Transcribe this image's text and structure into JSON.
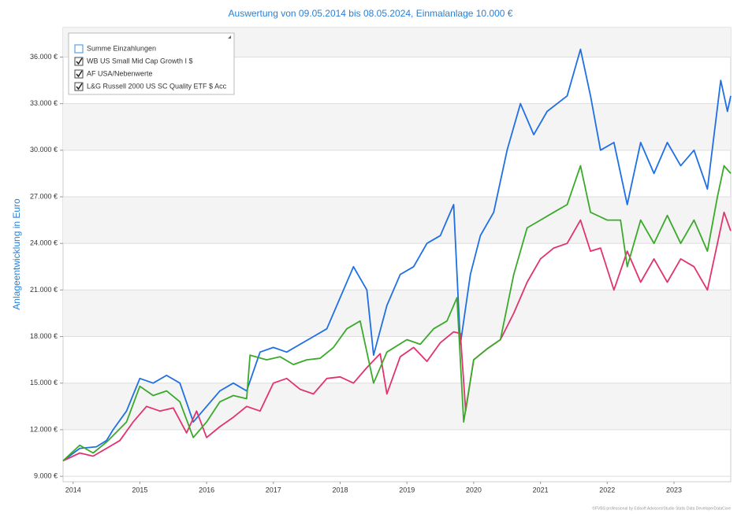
{
  "chart_data": {
    "type": "line",
    "title": "Auswertung von 09.05.2014 bis 08.05.2024, Einmalanlage 10.000 €",
    "y_label": "Anlageentwicklung  in Euro",
    "footer": "©FVBS professional by Edisoft Advisors/Studio Statis Data DeveloperDataCore",
    "xlim": [
      2014.35,
      2024.35
    ],
    "xticks": [
      {
        "value": 2014.5,
        "label": "2014"
      },
      {
        "value": 2015.5,
        "label": "2015"
      },
      {
        "value": 2016.5,
        "label": "2016"
      },
      {
        "value": 2017.5,
        "label": "2017"
      },
      {
        "value": 2018.5,
        "label": "2018"
      },
      {
        "value": 2019.5,
        "label": "2019"
      },
      {
        "value": 2020.5,
        "label": "2020"
      },
      {
        "value": 2021.5,
        "label": "2021"
      },
      {
        "value": 2022.5,
        "label": "2022"
      },
      {
        "value": 2023.5,
        "label": "2023"
      }
    ],
    "ylim": [
      8650,
      37900
    ],
    "yticks": [
      {
        "value": 9000,
        "label": "9.000 €"
      },
      {
        "value": 12000,
        "label": "12.000 €"
      },
      {
        "value": 15000,
        "label": "15.000 €"
      },
      {
        "value": 18000,
        "label": "18.000 €"
      },
      {
        "value": 21000,
        "label": "21.000 €"
      },
      {
        "value": 24000,
        "label": "24.000 €"
      },
      {
        "value": 27000,
        "label": "27.000 €"
      },
      {
        "value": 30000,
        "label": "30.000 €"
      },
      {
        "value": 33000,
        "label": "33.000 €"
      },
      {
        "value": 36000,
        "label": "36.000 €"
      }
    ],
    "grid": true,
    "legend": "top-left",
    "series": [
      {
        "name": "Summe Einzahlungen",
        "color": "#f39c12",
        "checked": false,
        "x": [],
        "values": []
      },
      {
        "name": "WB US Small Mid Cap Growth I $",
        "color": "#1f6fe5",
        "checked": true,
        "x": [
          2014.35,
          2014.6,
          2014.85,
          2015.0,
          2015.1,
          2015.3,
          2015.5,
          2015.7,
          2015.9,
          2016.1,
          2016.3,
          2016.5,
          2016.7,
          2016.9,
          2017.1,
          2017.3,
          2017.5,
          2017.7,
          2017.9,
          2018.1,
          2018.3,
          2018.5,
          2018.7,
          2018.9,
          2019.0,
          2019.2,
          2019.4,
          2019.6,
          2019.8,
          2020.0,
          2020.2,
          2020.3,
          2020.45,
          2020.6,
          2020.8,
          2021.0,
          2021.2,
          2021.4,
          2021.6,
          2021.9,
          2022.1,
          2022.25,
          2022.4,
          2022.6,
          2022.8,
          2023.0,
          2023.2,
          2023.4,
          2023.6,
          2023.8,
          2024.0,
          2024.2,
          2024.3,
          2024.35
        ],
        "values": [
          10000,
          10800,
          10900,
          11300,
          12000,
          13200,
          15300,
          15000,
          15500,
          15000,
          12500,
          13500,
          14500,
          15000,
          14500,
          17000,
          17300,
          17000,
          17500,
          18000,
          18500,
          20500,
          22500,
          21000,
          16800,
          20000,
          22000,
          22500,
          24000,
          24500,
          26500,
          17500,
          22000,
          24500,
          26000,
          30000,
          33000,
          31000,
          32500,
          33500,
          36500,
          33500,
          30000,
          30500,
          26500,
          30500,
          28500,
          30500,
          29000,
          30000,
          27500,
          34500,
          32500,
          33500
        ]
      },
      {
        "name": "AF USA/Nebenwerte",
        "color": "#e0336f",
        "checked": true,
        "x": [
          2014.35,
          2014.6,
          2014.8,
          2015.0,
          2015.2,
          2015.4,
          2015.6,
          2015.8,
          2016.0,
          2016.2,
          2016.35,
          2016.5,
          2016.7,
          2016.9,
          2017.1,
          2017.3,
          2017.5,
          2017.7,
          2017.9,
          2018.1,
          2018.3,
          2018.5,
          2018.7,
          2018.9,
          2019.1,
          2019.2,
          2019.4,
          2019.6,
          2019.8,
          2020.0,
          2020.2,
          2020.3,
          2020.38,
          2020.5,
          2020.7,
          2020.9,
          2021.1,
          2021.3,
          2021.5,
          2021.7,
          2021.9,
          2022.1,
          2022.25,
          2022.4,
          2022.6,
          2022.8,
          2023.0,
          2023.2,
          2023.4,
          2023.6,
          2023.8,
          2024.0,
          2024.15,
          2024.25,
          2024.35
        ],
        "values": [
          10000,
          10500,
          10300,
          10800,
          11300,
          12500,
          13500,
          13200,
          13400,
          11800,
          13200,
          11500,
          12200,
          12800,
          13500,
          13200,
          15000,
          15300,
          14600,
          14300,
          15300,
          15400,
          15000,
          16000,
          16900,
          14300,
          16700,
          17300,
          16400,
          17600,
          18300,
          18200,
          13200,
          16500,
          17200,
          17800,
          19500,
          21500,
          23000,
          23700,
          24000,
          25500,
          23500,
          23700,
          21000,
          23500,
          21500,
          23000,
          21500,
          23000,
          22500,
          21000,
          24000,
          26000,
          24800
        ]
      },
      {
        "name": "L&G Russell 2000 US SC Quality ETF $ Acc",
        "color": "#3aaa2a",
        "checked": true,
        "x": [
          2014.35,
          2014.6,
          2014.8,
          2015.0,
          2015.3,
          2015.5,
          2015.7,
          2015.9,
          2016.1,
          2016.3,
          2016.5,
          2016.7,
          2016.9,
          2017.1,
          2017.15,
          2017.4,
          2017.6,
          2017.8,
          2018.0,
          2018.2,
          2018.4,
          2018.6,
          2018.8,
          2019.0,
          2019.2,
          2019.5,
          2019.7,
          2019.9,
          2020.1,
          2020.25,
          2020.35,
          2020.5,
          2020.7,
          2020.9,
          2021.1,
          2021.3,
          2021.5,
          2021.7,
          2021.9,
          2022.1,
          2022.25,
          2022.5,
          2022.7,
          2022.8,
          2023.0,
          2023.2,
          2023.4,
          2023.6,
          2023.8,
          2024.0,
          2024.15,
          2024.25,
          2024.35
        ],
        "values": [
          10000,
          11000,
          10500,
          11200,
          12500,
          14800,
          14200,
          14500,
          13800,
          11500,
          12500,
          13800,
          14200,
          14000,
          16800,
          16500,
          16700,
          16200,
          16500,
          16600,
          17300,
          18500,
          19000,
          15000,
          17000,
          17800,
          17500,
          18500,
          19000,
          20500,
          12500,
          16500,
          17200,
          17800,
          22000,
          25000,
          25500,
          26000,
          26500,
          29000,
          26000,
          25500,
          25500,
          22500,
          25500,
          24000,
          25800,
          24000,
          25500,
          23500,
          27000,
          29000,
          28500
        ]
      }
    ]
  }
}
